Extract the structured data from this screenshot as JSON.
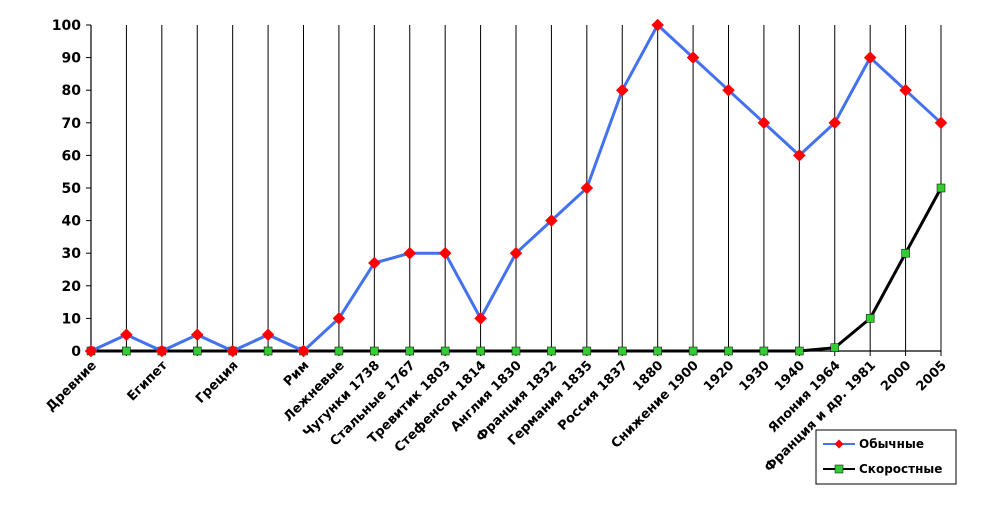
{
  "chart_data": {
    "type": "line",
    "categories": [
      "Древние",
      "",
      "Египет",
      "",
      "Греция",
      "",
      "Рим",
      "Лежневые",
      "Чугунки 1738",
      "Стальные 1767",
      "Тревитик 1803",
      "Стефенсон 1814",
      "Англия 1830",
      "Франция 1832",
      "Германия 1835",
      "Россия 1837",
      "1880",
      "Снижение 1900",
      "1920",
      "1930",
      "1940",
      "Япония 1964",
      "Франция и др. 1981",
      "2000",
      "2005"
    ],
    "series": [
      {
        "name": "Обычные",
        "color": "#4472ee",
        "marker": "diamond",
        "marker_color": "#ff0000",
        "values": [
          0,
          5,
          0,
          5,
          0,
          5,
          0,
          10,
          27,
          30,
          30,
          10,
          30,
          40,
          50,
          80,
          100,
          90,
          80,
          70,
          60,
          70,
          90,
          80,
          70
        ]
      },
      {
        "name": "Скоростные",
        "color": "#000000",
        "marker": "square",
        "marker_color": "#33cc33",
        "values": [
          0,
          0,
          0,
          0,
          0,
          0,
          0,
          0,
          0,
          0,
          0,
          0,
          0,
          0,
          0,
          0,
          0,
          0,
          0,
          0,
          0,
          1,
          10,
          30,
          50
        ]
      }
    ],
    "y_ticks": [
      "0",
      "10",
      "20",
      "30",
      "40",
      "50",
      "60",
      "70",
      "80",
      "90",
      "100"
    ],
    "ylim": [
      0,
      100
    ],
    "grid": "vertical",
    "legend_position": "bottom-right"
  }
}
